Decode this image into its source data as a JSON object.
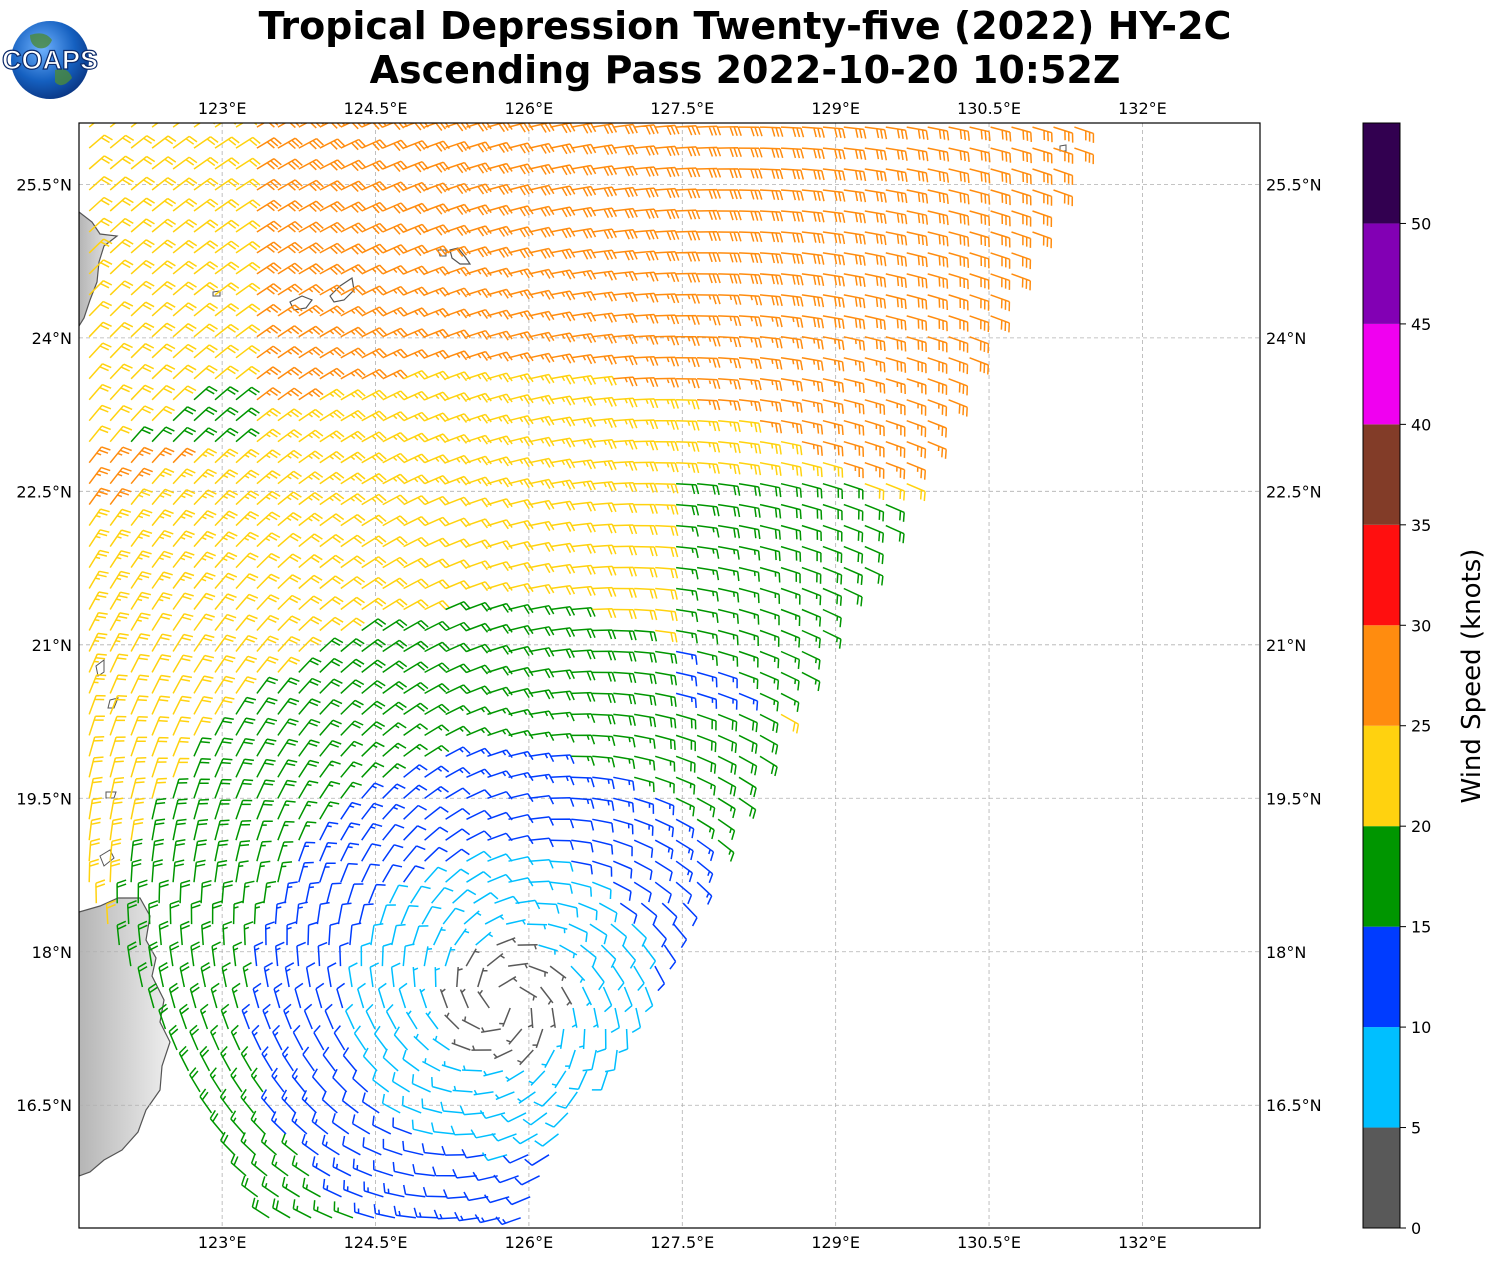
{
  "title": {
    "line1": "Tropical Depression Twenty-five (2022) HY-2C",
    "line2": "Ascending Pass 2022-10-20 10:52Z"
  },
  "logo": {
    "text": "COAPS",
    "icon": "globe-icon"
  },
  "map": {
    "lon_range": [
      121.6,
      133.15
    ],
    "lat_range": [
      15.3,
      26.1
    ],
    "lon_ticks": [
      "123°E",
      "124.5°E",
      "126°E",
      "127.5°E",
      "129°E",
      "130.5°E",
      "132°E"
    ],
    "lat_ticks": [
      "25.5°N",
      "24°N",
      "22.5°N",
      "21°N",
      "19.5°N",
      "18°N",
      "16.5°N"
    ],
    "gridlines": true
  },
  "colorbar": {
    "label": "Wind Speed (knots)",
    "tick_labels": [
      "0",
      "5",
      "10",
      "15",
      "20",
      "25",
      "30",
      "35",
      "40",
      "45",
      "50"
    ],
    "bins": [
      {
        "min": 0,
        "max": 5,
        "color": "#595959"
      },
      {
        "min": 5,
        "max": 10,
        "color": "#00bfff"
      },
      {
        "min": 10,
        "max": 15,
        "color": "#003cff"
      },
      {
        "min": 15,
        "max": 20,
        "color": "#009600"
      },
      {
        "min": 20,
        "max": 25,
        "color": "#ffd20f"
      },
      {
        "min": 25,
        "max": 30,
        "color": "#ff8c0f"
      },
      {
        "min": 30,
        "max": 35,
        "color": "#ff0f0f"
      },
      {
        "min": 35,
        "max": 40,
        "color": "#823c28"
      },
      {
        "min": 40,
        "max": 45,
        "color": "#f000f0"
      },
      {
        "min": 45,
        "max": 50,
        "color": "#8200b4"
      },
      {
        "min": 50,
        "max": 55,
        "color": "#320050"
      }
    ]
  },
  "wind_field": {
    "center": {
      "lon": 125.75,
      "lat": 17.5
    },
    "swath_edge_lon_at": {
      "lat_15.3": 126.0,
      "lat_26.1": 131.5
    },
    "max_wind_knots": 31
  }
}
